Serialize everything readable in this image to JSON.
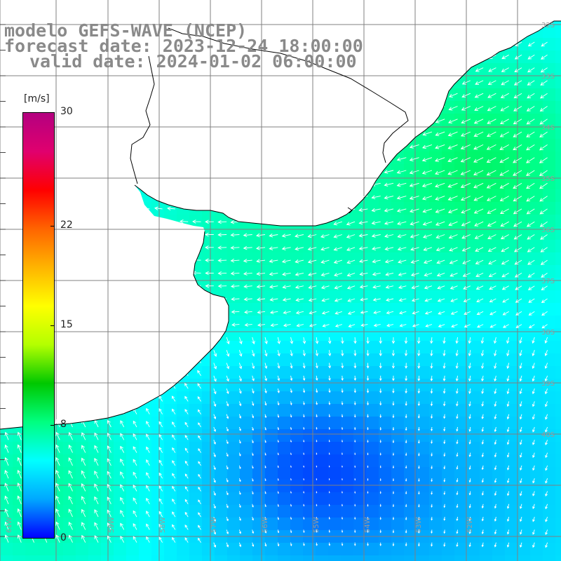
{
  "title": {
    "line1": "modelo GEFS-WAVE (NCEP)",
    "line2": "forecast date: 2023-12-24 18:00:00",
    "line3": "valid date: 2024-01-02 06:00:00"
  },
  "colorbar": {
    "unit": "[m/s]",
    "ticks": [
      {
        "value": 30,
        "label": "30"
      },
      {
        "value": 22,
        "label": "22"
      },
      {
        "value": 15,
        "label": "15"
      },
      {
        "value": 8,
        "label": "8"
      },
      {
        "value": 0,
        "label": "0"
      }
    ],
    "min": 0,
    "max": 30,
    "colors": [
      "#0000ff",
      "#00a8ff",
      "#00ffff",
      "#00ff80",
      "#00c800",
      "#b4ff00",
      "#ffff00",
      "#ffb400",
      "#ff6400",
      "#ff0000",
      "#e0006e",
      "#b40080"
    ]
  },
  "axes": {
    "lon_labels": [
      "61W",
      "59W",
      "58W",
      "57W",
      "56W",
      "55W",
      "54W",
      "53W",
      "52W"
    ],
    "lat_labels": [
      "32S",
      "33S",
      "34S",
      "35S",
      "36S",
      "37S",
      "38S",
      "39S",
      "40S"
    ]
  },
  "map": {
    "land_color": "#ffffff",
    "coast_color": "#000000",
    "grid_color": "#808080",
    "arrow_color": "#ffffff"
  }
}
